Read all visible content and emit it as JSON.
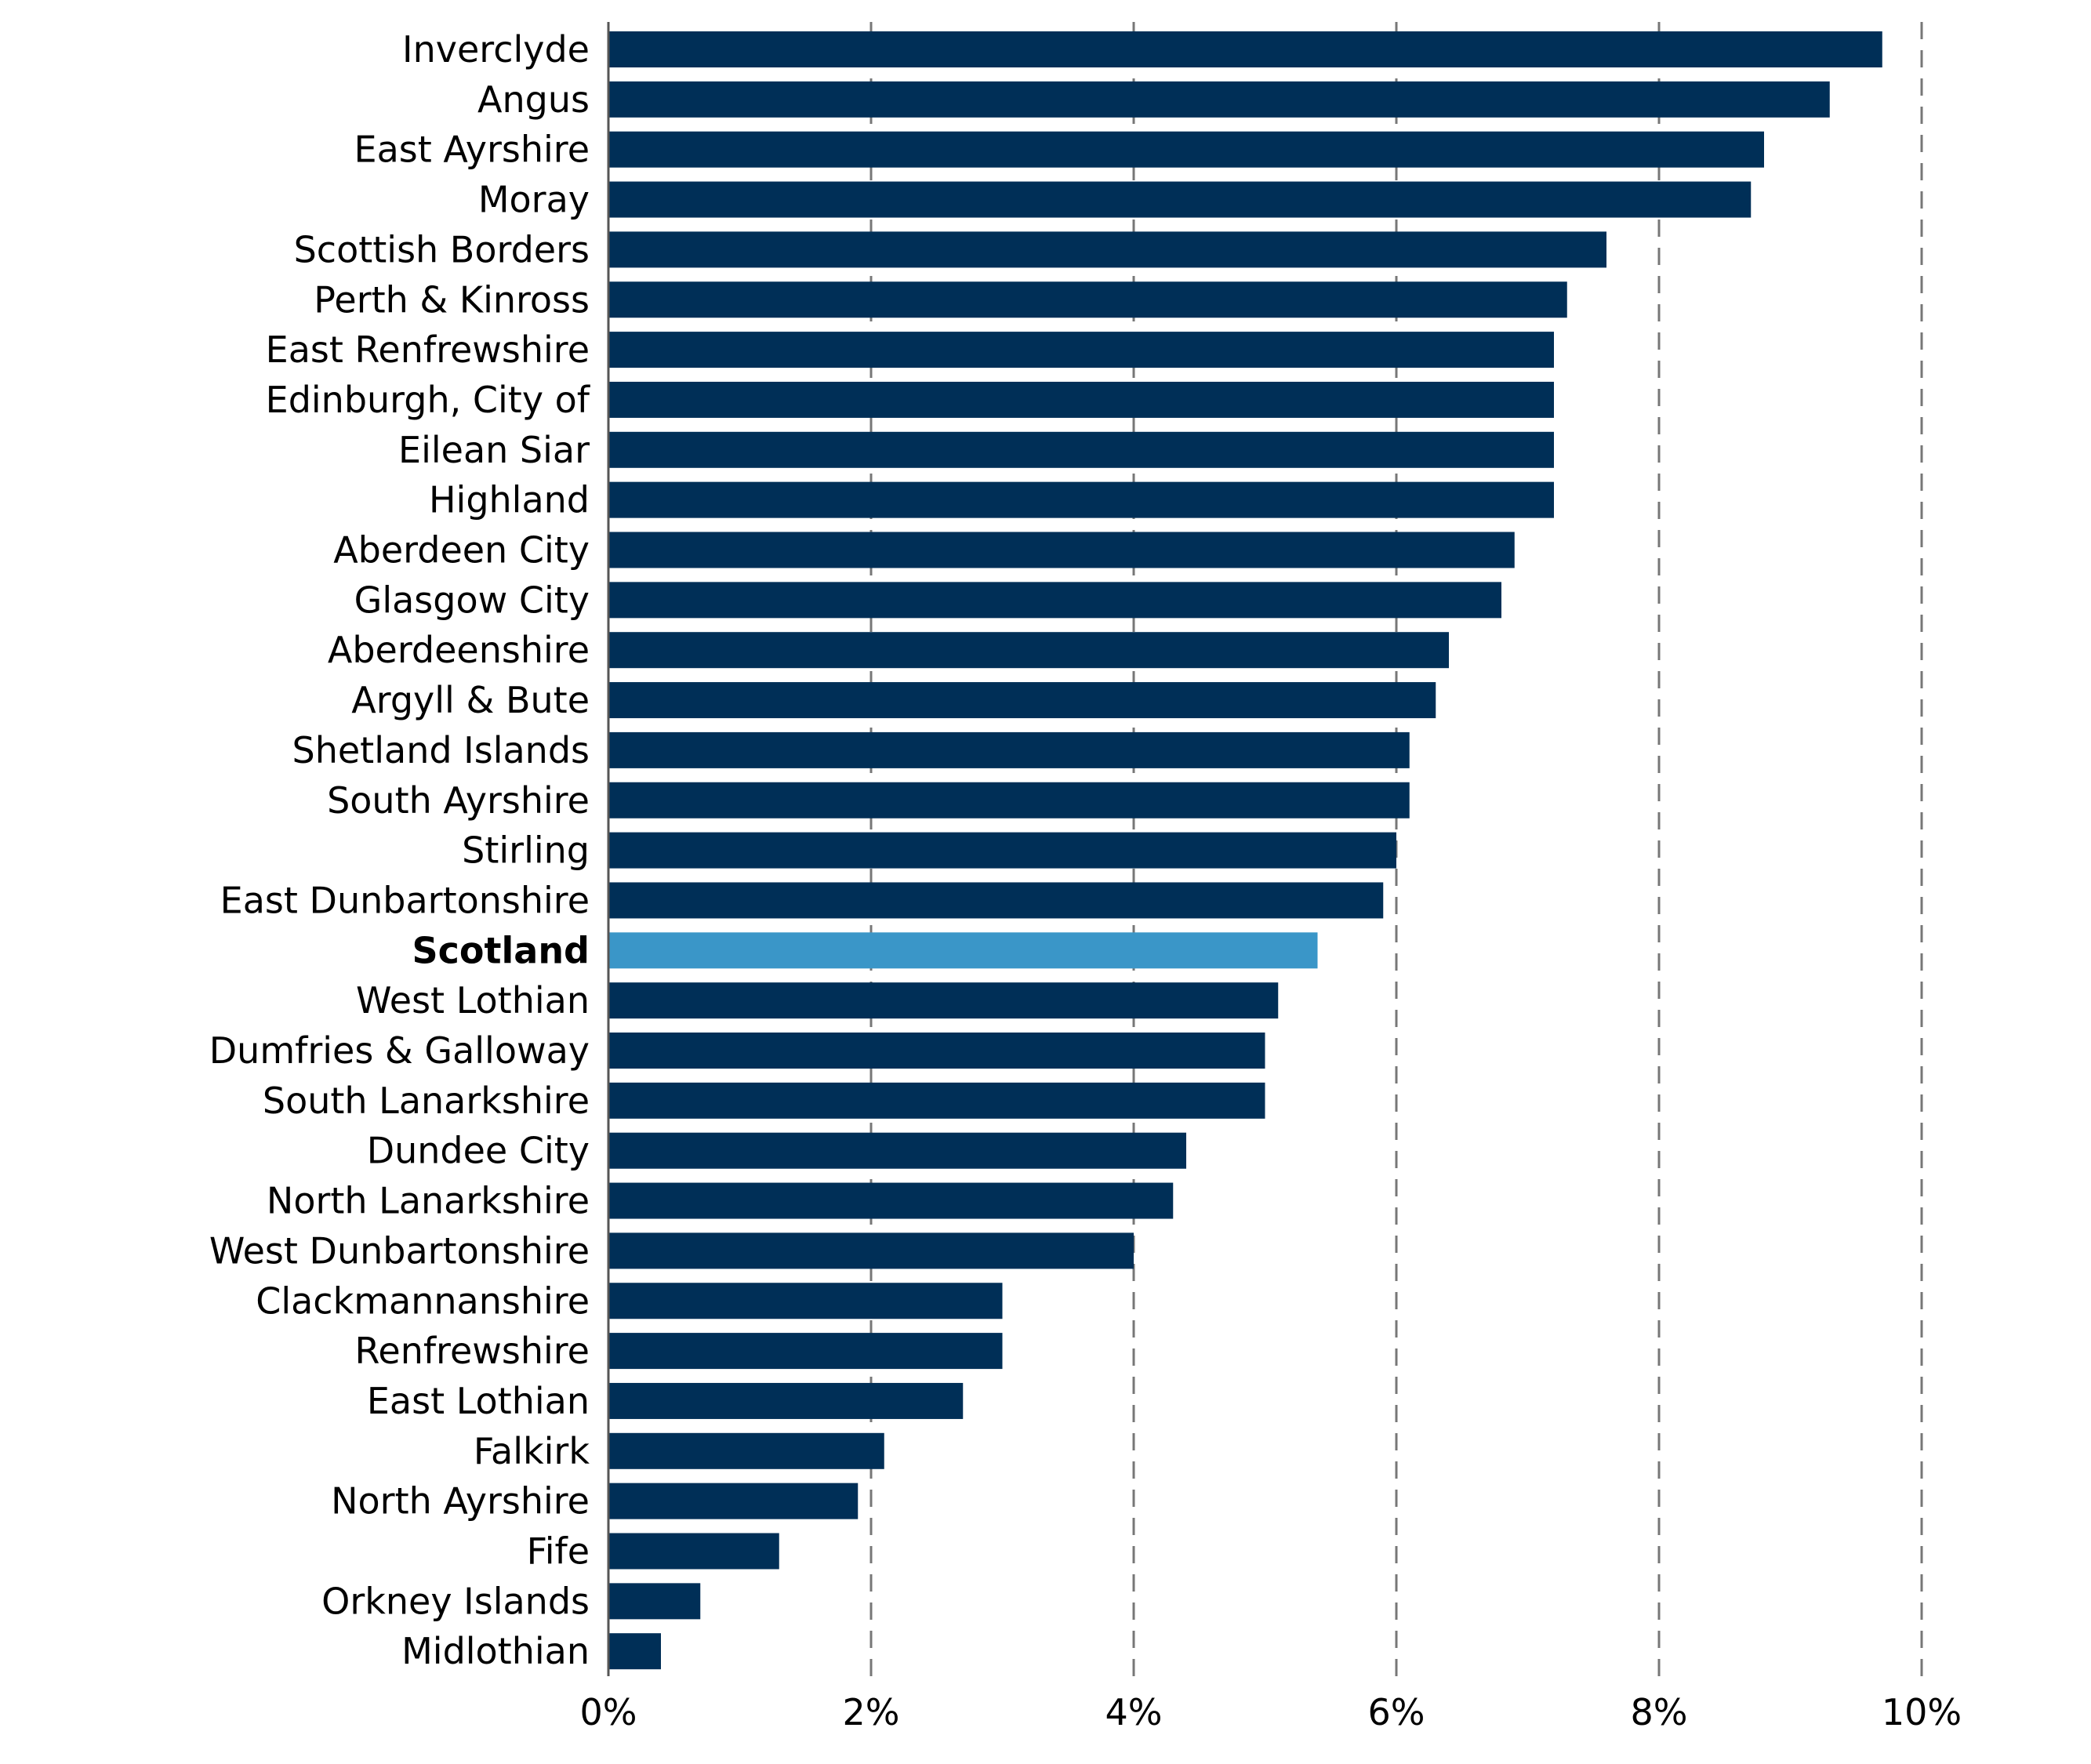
{
  "chart_data": {
    "type": "bar",
    "orientation": "horizontal",
    "title": "",
    "xlabel": "",
    "ylabel": "",
    "xlim": [
      0,
      10
    ],
    "x_ticks": [
      "0%",
      "2%",
      "4%",
      "6%",
      "8%",
      "10%"
    ],
    "grid": "vertical dashed",
    "legend": "none",
    "colors": {
      "default_bar": "#002F57",
      "highlight_bar": "#3A96C8",
      "axis": "#555555",
      "grid": "#777777",
      "label": "#000000"
    },
    "highlight": "Scotland",
    "categories": [
      "Inverclyde",
      "Angus",
      "East Ayrshire",
      "Moray",
      "Scottish Borders",
      "Perth & Kinross",
      "East Renfrewshire",
      "Edinburgh, City of",
      "Eilean Siar",
      "Highland",
      "Aberdeen City",
      "Glasgow City",
      "Aberdeenshire",
      "Argyll & Bute",
      "Shetland Islands",
      "South Ayrshire",
      "Stirling",
      "East Dunbartonshire",
      "Scotland",
      "West Lothian",
      "Dumfries & Galloway",
      "South Lanarkshire",
      "Dundee City",
      "North Lanarkshire",
      "West Dunbartonshire",
      "Clackmannanshire",
      "Renfrewshire",
      "East Lothian",
      "Falkirk",
      "North Ayrshire",
      "Fife",
      "Orkney Islands",
      "Midlothian"
    ],
    "values": [
      9.7,
      9.3,
      8.8,
      8.7,
      7.6,
      7.3,
      7.2,
      7.2,
      7.2,
      7.2,
      6.9,
      6.8,
      6.4,
      6.3,
      6.1,
      6.1,
      6.0,
      5.9,
      5.4,
      5.1,
      5.0,
      5.0,
      4.4,
      4.3,
      4.0,
      3.0,
      3.0,
      2.7,
      2.1,
      1.9,
      1.3,
      0.7,
      0.4
    ]
  }
}
